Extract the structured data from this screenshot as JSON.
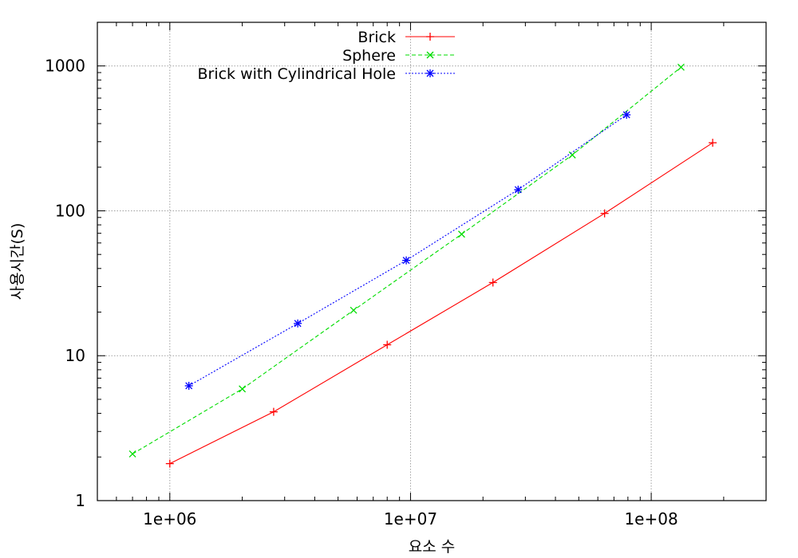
{
  "chart_data": {
    "type": "line",
    "xscale": "log",
    "yscale": "log",
    "xlim": [
      500000,
      300000000
    ],
    "ylim": [
      1,
      2000
    ],
    "xlabel": "요소 수",
    "ylabel": "사용시간(S)",
    "xticks": [
      {
        "value": 1000000,
        "label": "1e+06"
      },
      {
        "value": 10000000,
        "label": "1e+07"
      },
      {
        "value": 100000000,
        "label": "1e+08"
      }
    ],
    "yticks": [
      {
        "value": 1,
        "label": "1"
      },
      {
        "value": 10,
        "label": "10"
      },
      {
        "value": 100,
        "label": "100"
      },
      {
        "value": 1000,
        "label": "1000"
      }
    ],
    "grid": true,
    "legend_position": "top-center",
    "series": [
      {
        "name": "Brick",
        "color": "#ff0000",
        "marker": "plus",
        "dash": "solid",
        "x": [
          1000000,
          2700000,
          8000000,
          22000000,
          64000000,
          180000000
        ],
        "y": [
          1.8,
          4.1,
          11.9,
          32,
          96,
          295
        ]
      },
      {
        "name": "Sphere",
        "color": "#00dd00",
        "marker": "cross",
        "dash": "dashed",
        "x": [
          700000,
          2000000,
          5800000,
          16300000,
          47000000,
          133000000
        ],
        "y": [
          2.1,
          5.9,
          20.6,
          69,
          243,
          980
        ]
      },
      {
        "name": "Brick with Cylindrical Hole",
        "color": "#0000ff",
        "marker": "star",
        "dash": "dotted",
        "x": [
          1200000,
          3400000,
          9600000,
          28000000,
          79000000
        ],
        "y": [
          6.2,
          16.7,
          45.5,
          140,
          460
        ]
      }
    ]
  }
}
